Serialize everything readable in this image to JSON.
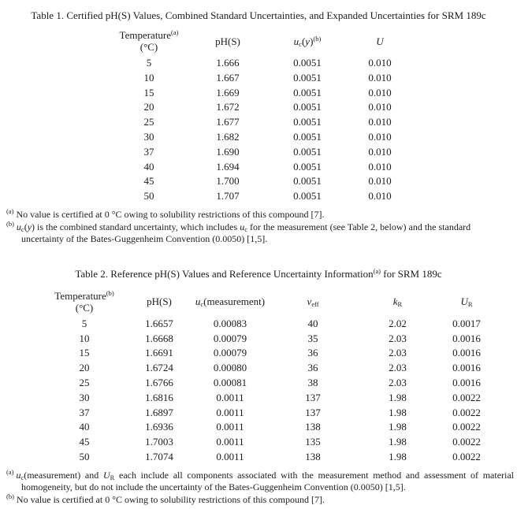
{
  "colors": {
    "text": "#1c1c1c",
    "background": "#ffffff"
  },
  "table1": {
    "title": "Table 1.  Certified pH(S) Values, Combined Standard Uncertainties, and Expanded Uncertainties for SRM 189c",
    "headers": {
      "temperature": {
        "rich": [
          [
            "",
            "Temperature"
          ],
          [
            "sup",
            "(a)"
          ]
        ],
        "unit": "(°C)"
      },
      "ph": "pH(S)",
      "uc_rich": [
        [
          "i",
          "u"
        ],
        [
          "sub",
          "c"
        ],
        [
          "",
          "("
        ],
        [
          "i",
          "y"
        ],
        [
          "",
          ")"
        ],
        [
          "sup",
          "(b)"
        ]
      ],
      "expanded_u_rich": [
        [
          "i",
          "U"
        ]
      ]
    },
    "rows": [
      [
        "5",
        "1.666",
        "0.0051",
        "0.010"
      ],
      [
        "10",
        "1.667",
        "0.0051",
        "0.010"
      ],
      [
        "15",
        "1.669",
        "0.0051",
        "0.010"
      ],
      [
        "20",
        "1.672",
        "0.0051",
        "0.010"
      ],
      [
        "25",
        "1.677",
        "0.0051",
        "0.010"
      ],
      [
        "30",
        "1.682",
        "0.0051",
        "0.010"
      ],
      [
        "37",
        "1.690",
        "0.0051",
        "0.010"
      ],
      [
        "40",
        "1.694",
        "0.0051",
        "0.010"
      ],
      [
        "45",
        "1.700",
        "0.0051",
        "0.010"
      ],
      [
        "50",
        "1.707",
        "0.0051",
        "0.010"
      ]
    ],
    "footnotes": [
      {
        "marker": "(a)",
        "rich": [
          [
            "",
            "No value is certified at 0 °C owing to solubility restrictions of this compound [7]."
          ]
        ]
      },
      {
        "marker": "(b)",
        "rich": [
          [
            "i",
            "u"
          ],
          [
            "sub",
            "c"
          ],
          [
            "",
            "("
          ],
          [
            "i",
            "y"
          ],
          [
            "",
            ") is the combined standard uncertainty, which includes "
          ],
          [
            "i",
            "u"
          ],
          [
            "sub",
            "c"
          ],
          [
            "",
            " for the measurement (see Table 2, below) and the standard uncertainty of the Bates-Guggenheim Convention (0.0050) [1,5]."
          ]
        ]
      }
    ]
  },
  "table2": {
    "title_rich": [
      [
        "",
        "Table 2.  Reference pH(S) Values and Reference Uncertainty Information"
      ],
      [
        "sup",
        "(a)"
      ],
      [
        "",
        " for SRM 189c"
      ]
    ],
    "headers": {
      "temperature": {
        "rich": [
          [
            "",
            "Temperature"
          ],
          [
            "sup",
            "(b)"
          ]
        ],
        "unit": "(°C)"
      },
      "ph": "pH(S)",
      "uc_rich": [
        [
          "i",
          "u"
        ],
        [
          "sub",
          "c"
        ],
        [
          "",
          "(measurement)"
        ]
      ],
      "veff_rich": [
        [
          "i",
          "ν"
        ],
        [
          "sub",
          "eff"
        ]
      ],
      "kr_rich": [
        [
          "i",
          "k"
        ],
        [
          "sub",
          "R"
        ]
      ],
      "ur_rich": [
        [
          "i",
          "U"
        ],
        [
          "sub",
          "R"
        ]
      ]
    },
    "rows": [
      [
        "5",
        "1.6657",
        "0.00083",
        "40",
        "2.02",
        "0.0017"
      ],
      [
        "10",
        "1.6668",
        "0.00079",
        "35",
        "2.03",
        "0.0016"
      ],
      [
        "15",
        "1.6691",
        "0.00079",
        "36",
        "2.03",
        "0.0016"
      ],
      [
        "20",
        "1.6724",
        "0.00080",
        "36",
        "2.03",
        "0.0016"
      ],
      [
        "25",
        "1.6766",
        "0.00081",
        "38",
        "2.03",
        "0.0016"
      ],
      [
        "30",
        "1.6816",
        "0.0011",
        "137",
        "1.98",
        "0.0022"
      ],
      [
        "37",
        "1.6897",
        "0.0011",
        "137",
        "1.98",
        "0.0022"
      ],
      [
        "40",
        "1.6936",
        "0.0011",
        "138",
        "1.98",
        "0.0022"
      ],
      [
        "45",
        "1.7003",
        "0.0011",
        "135",
        "1.98",
        "0.0022"
      ],
      [
        "50",
        "1.7074",
        "0.0011",
        "138",
        "1.98",
        "0.0022"
      ]
    ],
    "footnotes": [
      {
        "marker": "(a)",
        "rich": [
          [
            "i",
            "u"
          ],
          [
            "sub",
            "c"
          ],
          [
            "",
            "(measurement) and "
          ],
          [
            "i",
            "U"
          ],
          [
            "sub",
            "R"
          ],
          [
            "",
            " each include all components associated with the measurement method and assessment of material homogeneity, but do not include the uncertainty of the Bates-Guggenheim Convention (0.0050) [1,5]."
          ]
        ]
      },
      {
        "marker": "(b)",
        "rich": [
          [
            "",
            "No value is certified at 0 °C owing to solubility restrictions of this compound [7]."
          ]
        ]
      }
    ]
  }
}
